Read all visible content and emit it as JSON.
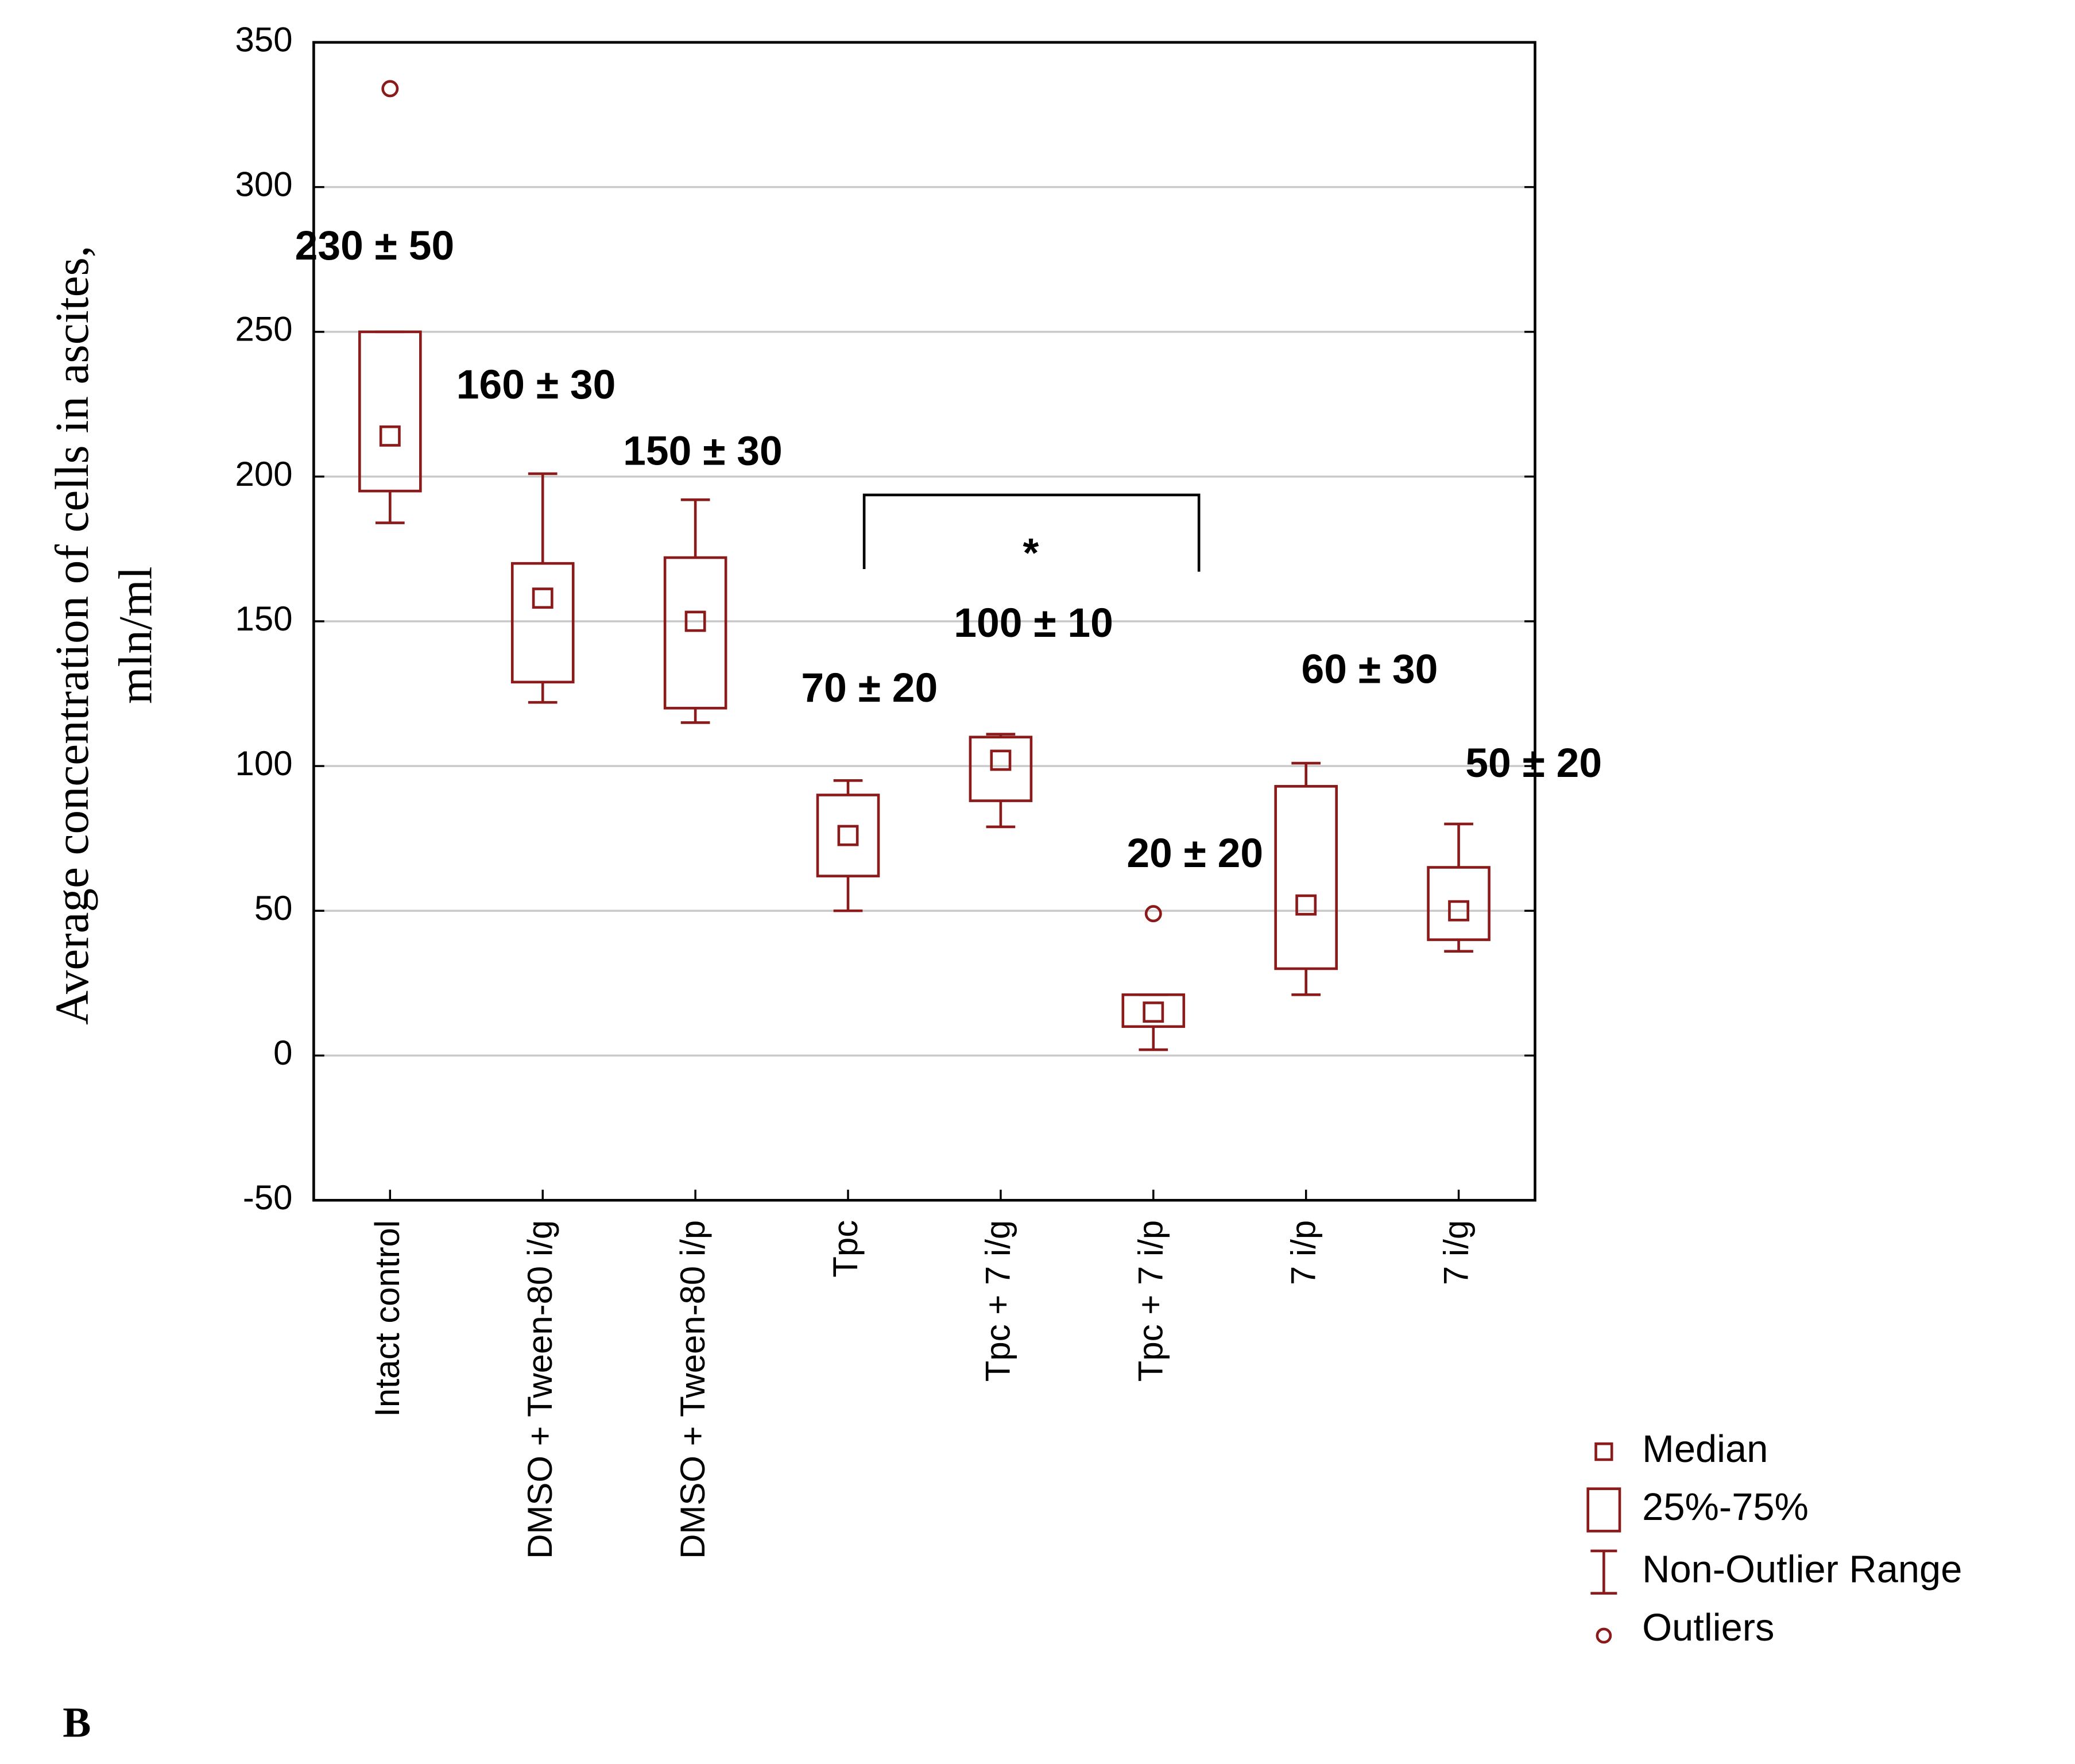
{
  "chart_data": {
    "type": "box",
    "y_label": [
      "Average concentration of cells in ascites,",
      "mln/ml"
    ],
    "categories": [
      "Intact control",
      "DMSO + Tween-80 i/g",
      "DMSO + Tween-80 i/p",
      "Tpc",
      "Tpc + 7 i/g",
      "Tpc + 7 i/p",
      "7 i/p",
      "7 i/g"
    ],
    "whisker_low": [
      184,
      122,
      115,
      50,
      79,
      2,
      21,
      36
    ],
    "q1": [
      195,
      129,
      120,
      62,
      88,
      10,
      30,
      40
    ],
    "median": [
      214,
      158,
      150,
      76,
      102,
      15,
      52,
      50
    ],
    "q3": [
      250,
      170,
      172,
      90,
      110,
      21,
      93,
      65
    ],
    "whisker_high": [
      250,
      201,
      192,
      95,
      111,
      21,
      101,
      80
    ],
    "outliers": [
      [
        334
      ],
      [],
      [],
      [],
      [],
      [
        49
      ],
      [],
      []
    ],
    "annotations": [
      "230 ± 50",
      "160 ± 30",
      "150 ± 30",
      "70 ± 20",
      "100 ± 10",
      "20 ± 20",
      "60 ± 30",
      "50 ± 20"
    ],
    "significance": "*",
    "color": "#8b1a1a",
    "ylim": [
      -50,
      350
    ],
    "yticks": [
      -50,
      0,
      50,
      100,
      150,
      200,
      250,
      300,
      350
    ],
    "grid": true,
    "legend": [
      "Median",
      "25%-75%",
      "Non-Outlier Range",
      "Outliers"
    ],
    "panel": "B"
  }
}
